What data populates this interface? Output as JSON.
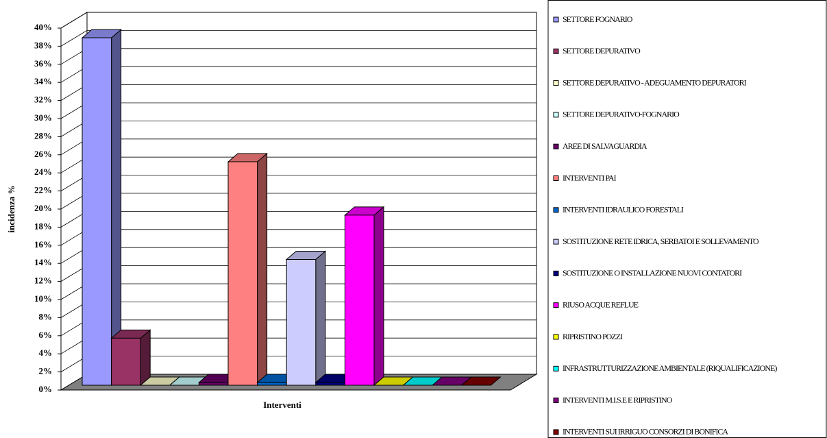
{
  "chart_data": {
    "type": "bar3d",
    "ylabel": "incidenza %",
    "xlabel": "Interventi",
    "categories": [
      null
    ],
    "ylim": [
      0,
      40
    ],
    "yticks": [
      {
        "value": 0,
        "label": "0%"
      },
      {
        "value": 2,
        "label": "2%"
      },
      {
        "value": 4,
        "label": "4%"
      },
      {
        "value": 6,
        "label": "6%"
      },
      {
        "value": 8,
        "label": "8%"
      },
      {
        "value": 10,
        "label": "10%"
      },
      {
        "value": 12,
        "label": "12%"
      },
      {
        "value": 14,
        "label": "14%"
      },
      {
        "value": 16,
        "label": "16%"
      },
      {
        "value": 18,
        "label": "18%"
      },
      {
        "value": 20,
        "label": "20%"
      },
      {
        "value": 22,
        "label": "22%"
      },
      {
        "value": 24,
        "label": "24%"
      },
      {
        "value": 26,
        "label": "26%"
      },
      {
        "value": 28,
        "label": "28%"
      },
      {
        "value": 30,
        "label": "30%"
      },
      {
        "value": 32,
        "label": "32%"
      },
      {
        "value": 34,
        "label": "34%"
      },
      {
        "value": 36,
        "label": "36%"
      },
      {
        "value": 38,
        "label": "38%"
      },
      {
        "value": 40,
        "label": "40%"
      }
    ],
    "grid": true,
    "series": [
      {
        "name": "SETTORE FOGNARIO",
        "color": "#9999ff",
        "values": [
          38.4
        ]
      },
      {
        "name": "SETTORE DEPURATIVO",
        "color": "#993366",
        "values": [
          5.2
        ]
      },
      {
        "name": "SETTORE DEPURATIVO - ADEGUAMENTO DEPURATORI",
        "color": "#ffffcc",
        "values": [
          0
        ]
      },
      {
        "name": "SETTORE DEPURATIVO-FOGNARIO",
        "color": "#ccffff",
        "values": [
          0
        ]
      },
      {
        "name": "AREE DI SALVAGUARDIA",
        "color": "#660066",
        "values": [
          0.3
        ]
      },
      {
        "name": "INTERVENTI PAI",
        "color": "#ff8080",
        "values": [
          24.7
        ]
      },
      {
        "name": "INTERVENTI IDRAULICO FORESTALI",
        "color": "#0066cc",
        "values": [
          0.3
        ]
      },
      {
        "name": "SOSTITUZIONE RETE IDRICA, SERBATOI E SOLLEVAMENTO",
        "color": "#ccccff",
        "values": [
          13.9
        ]
      },
      {
        "name": "SOSTITUZIONE O INSTALLAZIONE NUOVI CONTATORI",
        "color": "#000080",
        "values": [
          0.3
        ]
      },
      {
        "name": "RIUSO ACQUE REFLUE",
        "color": "#ff00ff",
        "values": [
          18.8
        ]
      },
      {
        "name": "RIPRISTINO POZZI",
        "color": "#ffff00",
        "values": [
          0
        ]
      },
      {
        "name": "INFRASTRUTTURIZZAZIONE AMBIENTALE (RIQUALIFICAZIONE)",
        "color": "#00ffff",
        "values": [
          0
        ]
      },
      {
        "name": "INTERVENTI M.I.S.E E RIPRISTINO",
        "color": "#800080",
        "values": [
          0
        ]
      },
      {
        "name": "INTERVENTI SUI IRRIGUO CONSORZI DI BONIFICA",
        "color": "#800000",
        "values": [
          0
        ]
      }
    ]
  }
}
